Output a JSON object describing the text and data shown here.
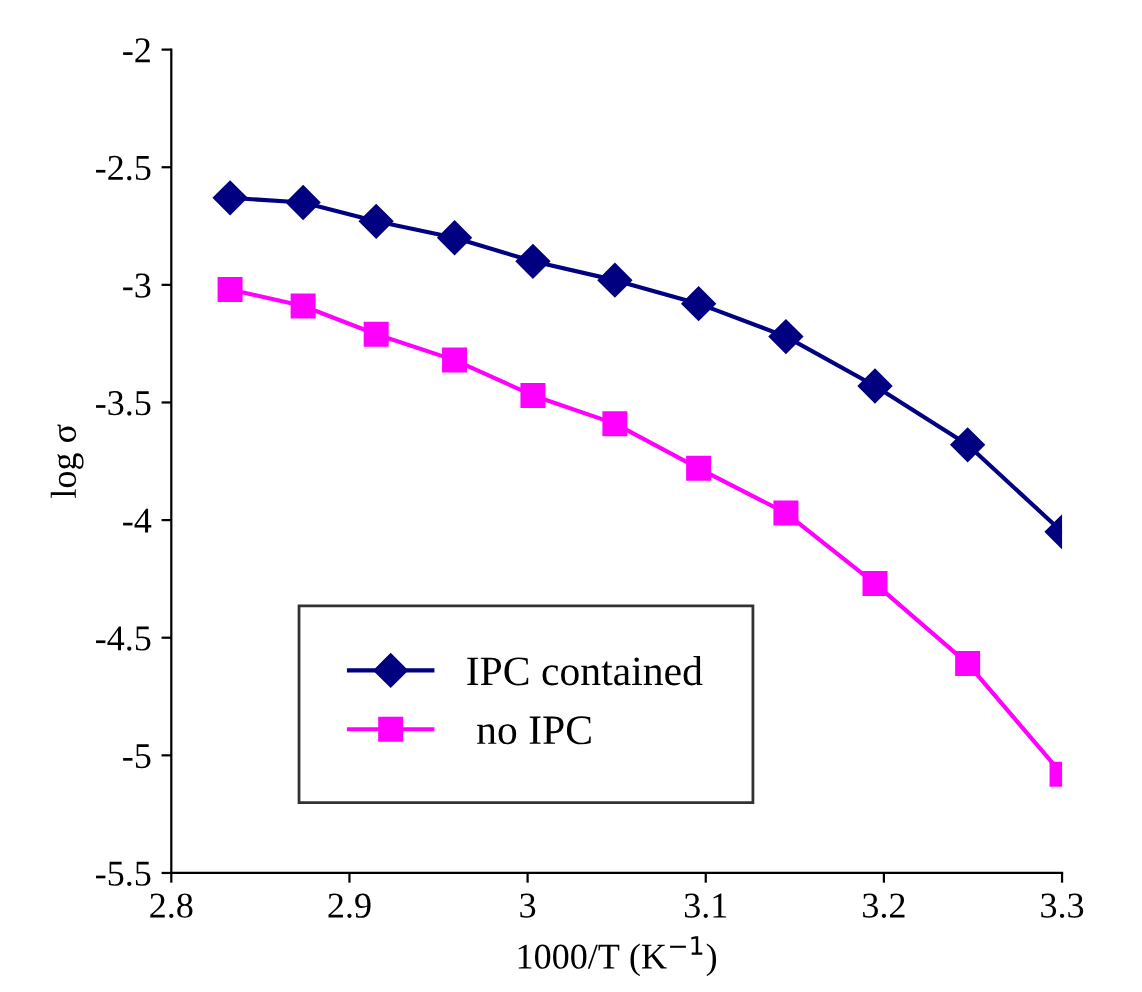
{
  "chart_data": {
    "type": "line",
    "xlabel": "1000/T (K$^{−1}$)",
    "ylabel": "log σ",
    "x": [
      2.833,
      2.874,
      2.915,
      2.959,
      3.003,
      3.049,
      3.096,
      3.145,
      3.195,
      3.247,
      3.3
    ],
    "series": [
      {
        "name": "IPC contained",
        "color": "#000080",
        "marker": "diamond",
        "values": [
          -2.63,
          -2.65,
          -2.73,
          -2.8,
          -2.9,
          -2.98,
          -3.08,
          -3.22,
          -3.43,
          -3.68,
          -4.05
        ]
      },
      {
        "name": " no IPC",
        "color": "#ff00ff",
        "marker": "square",
        "values": [
          -3.02,
          -3.09,
          -3.21,
          -3.32,
          -3.47,
          -3.59,
          -3.78,
          -3.97,
          -4.27,
          -4.61,
          -5.08
        ]
      }
    ],
    "xlim": [
      2.8,
      3.3
    ],
    "xticks": [
      2.8,
      2.9,
      3,
      3.1,
      3.2,
      3.3
    ],
    "ylim": [
      -5.5,
      -2
    ],
    "yticks": [
      -5.5,
      -5,
      -4.5,
      -4,
      -3.5,
      -3,
      -2.5,
      -2
    ],
    "grid": false,
    "legend": "bottom left",
    "line_style": "solid"
  }
}
